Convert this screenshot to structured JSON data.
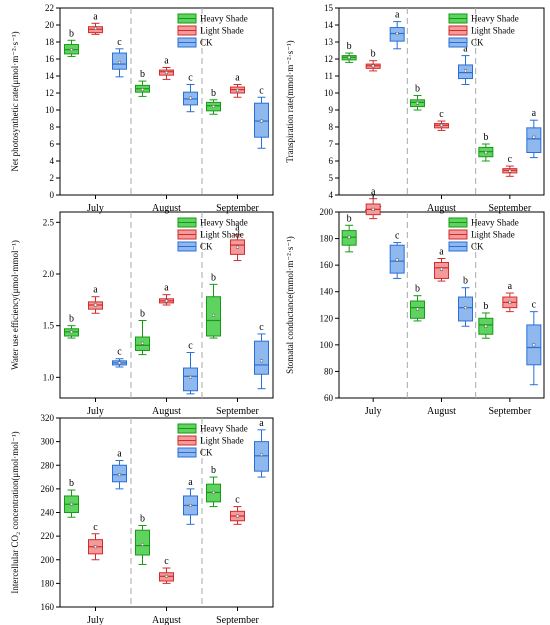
{
  "groups": [
    "July",
    "August",
    "September"
  ],
  "series": [
    {
      "name": "Heavy Shade",
      "fill": "#5fd35f",
      "stroke": "#169a16"
    },
    {
      "name": "Light Shade",
      "fill": "#f59a9a",
      "stroke": "#d22b2b"
    },
    {
      "name": "CK",
      "fill": "#8fb8ef",
      "stroke": "#2a6fd8"
    }
  ],
  "chart_data": [
    {
      "type": "box",
      "ylabel": "Net photosynthetic rate(μmol·m⁻²·s⁻¹)",
      "ylim": [
        0,
        22
      ],
      "yticks": [
        0,
        2,
        4,
        6,
        8,
        10,
        12,
        14,
        16,
        18,
        20,
        22
      ],
      "legend": "top-right",
      "boxes": [
        [
          {
            "min": 16.3,
            "q1": 16.6,
            "median": 17.1,
            "q3": 17.7,
            "max": 18.2,
            "mean": 17.1,
            "label": "b"
          },
          {
            "min": 18.9,
            "q1": 19.1,
            "median": 19.5,
            "q3": 19.8,
            "max": 20.2,
            "mean": 19.6,
            "label": "a"
          },
          {
            "min": 13.9,
            "q1": 14.8,
            "median": 15.4,
            "q3": 16.7,
            "max": 17.2,
            "mean": 15.6,
            "label": "c"
          }
        ],
        [
          {
            "min": 11.6,
            "q1": 12.1,
            "median": 12.5,
            "q3": 12.9,
            "max": 13.4,
            "mean": 12.4,
            "label": "b"
          },
          {
            "min": 13.6,
            "q1": 14.1,
            "median": 14.5,
            "q3": 14.7,
            "max": 15.0,
            "mean": 14.4,
            "label": "a"
          },
          {
            "min": 9.8,
            "q1": 10.6,
            "median": 11.3,
            "q3": 12.1,
            "max": 13.0,
            "mean": 11.4,
            "label": "c"
          }
        ],
        [
          {
            "min": 9.5,
            "q1": 9.9,
            "median": 10.5,
            "q3": 10.9,
            "max": 11.2,
            "mean": 10.4,
            "label": "b"
          },
          {
            "min": 11.5,
            "q1": 12.0,
            "median": 12.4,
            "q3": 12.7,
            "max": 13.0,
            "mean": 12.3,
            "label": "a"
          },
          {
            "min": 5.5,
            "q1": 6.8,
            "median": 8.7,
            "q3": 10.8,
            "max": 11.5,
            "mean": 8.7,
            "label": "c"
          }
        ]
      ]
    },
    {
      "type": "box",
      "ylabel": "Transpiration rate(mmol·m⁻²·s⁻¹)",
      "ylim": [
        4,
        15
      ],
      "yticks": [
        4,
        5,
        6,
        7,
        8,
        9,
        10,
        11,
        12,
        13,
        14,
        15
      ],
      "legend": "top-right",
      "boxes": [
        [
          {
            "min": 11.8,
            "q1": 11.95,
            "median": 12.1,
            "q3": 12.2,
            "max": 12.35,
            "mean": 12.1,
            "label": "b"
          },
          {
            "min": 11.3,
            "q1": 11.45,
            "median": 11.6,
            "q3": 11.7,
            "max": 11.9,
            "mean": 11.6,
            "label": "b"
          },
          {
            "min": 12.6,
            "q1": 13.05,
            "median": 13.5,
            "q3": 13.85,
            "max": 14.2,
            "mean": 13.5,
            "label": "a"
          }
        ],
        [
          {
            "min": 9.0,
            "q1": 9.2,
            "median": 9.45,
            "q3": 9.6,
            "max": 9.85,
            "mean": 9.4,
            "label": "b"
          },
          {
            "min": 7.8,
            "q1": 7.95,
            "median": 8.1,
            "q3": 8.2,
            "max": 8.35,
            "mean": 8.1,
            "label": "c"
          },
          {
            "min": 10.5,
            "q1": 10.85,
            "median": 11.2,
            "q3": 11.65,
            "max": 12.2,
            "mean": 11.3,
            "label": "a"
          }
        ],
        [
          {
            "min": 6.0,
            "q1": 6.25,
            "median": 6.55,
            "q3": 6.8,
            "max": 7.0,
            "mean": 6.5,
            "label": "b"
          },
          {
            "min": 5.1,
            "q1": 5.3,
            "median": 5.45,
            "q3": 5.55,
            "max": 5.7,
            "mean": 5.4,
            "label": "c"
          },
          {
            "min": 6.2,
            "q1": 6.5,
            "median": 7.3,
            "q3": 7.95,
            "max": 8.4,
            "mean": 7.4,
            "label": "a"
          }
        ]
      ]
    },
    {
      "type": "box",
      "ylabel": "Water use efficiency(μmol·mmol⁻¹)",
      "ylim": [
        0.8,
        2.6
      ],
      "yticks": [
        1.0,
        1.5,
        2.0,
        2.5
      ],
      "legend": "top-right",
      "boxes": [
        [
          {
            "min": 1.38,
            "q1": 1.4,
            "median": 1.44,
            "q3": 1.47,
            "max": 1.5,
            "mean": 1.44,
            "label": "b"
          },
          {
            "min": 1.62,
            "q1": 1.66,
            "median": 1.7,
            "q3": 1.73,
            "max": 1.78,
            "mean": 1.7,
            "label": "a"
          },
          {
            "min": 1.1,
            "q1": 1.12,
            "median": 1.14,
            "q3": 1.16,
            "max": 1.18,
            "mean": 1.14,
            "label": "c"
          }
        ],
        [
          {
            "min": 1.22,
            "q1": 1.26,
            "median": 1.31,
            "q3": 1.39,
            "max": 1.55,
            "mean": 1.33,
            "label": "b"
          },
          {
            "min": 1.7,
            "q1": 1.72,
            "median": 1.74,
            "q3": 1.76,
            "max": 1.8,
            "mean": 1.74,
            "label": "a"
          },
          {
            "min": 0.84,
            "q1": 0.87,
            "median": 1.01,
            "q3": 1.09,
            "max": 1.24,
            "mean": 1.0,
            "label": "c"
          }
        ],
        [
          {
            "min": 1.38,
            "q1": 1.4,
            "median": 1.55,
            "q3": 1.78,
            "max": 1.9,
            "mean": 1.6,
            "label": "b"
          },
          {
            "min": 2.13,
            "q1": 2.19,
            "median": 2.28,
            "q3": 2.33,
            "max": 2.38,
            "mean": 2.26,
            "label": "a"
          },
          {
            "min": 0.89,
            "q1": 1.03,
            "median": 1.12,
            "q3": 1.35,
            "max": 1.42,
            "mean": 1.16,
            "label": "c"
          }
        ]
      ]
    },
    {
      "type": "box",
      "ylabel": "Stomatal conductance(mmol·m⁻²·s⁻¹)",
      "ylim": [
        60,
        200
      ],
      "yticks": [
        60,
        80,
        100,
        120,
        140,
        160,
        180,
        200
      ],
      "legend": "top-right",
      "boxes": [
        [
          {
            "min": 170,
            "q1": 175,
            "median": 181,
            "q3": 186,
            "max": 190,
            "mean": 181,
            "label": "b"
          },
          {
            "min": 195,
            "q1": 198,
            "median": 202,
            "q3": 206,
            "max": 210,
            "mean": 202,
            "label": "a"
          },
          {
            "min": 150,
            "q1": 154,
            "median": 163,
            "q3": 175,
            "max": 177,
            "mean": 164,
            "label": "c"
          }
        ],
        [
          {
            "min": 118,
            "q1": 120,
            "median": 128,
            "q3": 133,
            "max": 137,
            "mean": 127,
            "label": "b"
          },
          {
            "min": 148,
            "q1": 150,
            "median": 158,
            "q3": 162,
            "max": 165,
            "mean": 157,
            "label": "a"
          },
          {
            "min": 114,
            "q1": 118,
            "median": 128,
            "q3": 136,
            "max": 143,
            "mean": 128,
            "label": "b"
          }
        ],
        [
          {
            "min": 105,
            "q1": 108,
            "median": 115,
            "q3": 120,
            "max": 124,
            "mean": 114,
            "label": "b"
          },
          {
            "min": 125,
            "q1": 128,
            "median": 132,
            "q3": 136,
            "max": 139,
            "mean": 132,
            "label": "a"
          },
          {
            "min": 70,
            "q1": 85,
            "median": 98,
            "q3": 115,
            "max": 125,
            "mean": 100,
            "label": "c"
          }
        ]
      ]
    },
    {
      "type": "box",
      "ylabel": "Intercellular CO₂ concentration(μmol·mol⁻¹)",
      "ylim": [
        160,
        320
      ],
      "yticks": [
        160,
        180,
        200,
        220,
        240,
        260,
        280,
        300,
        320
      ],
      "legend": "top-right",
      "boxes": [
        [
          {
            "min": 236,
            "q1": 240,
            "median": 247,
            "q3": 254,
            "max": 259,
            "mean": 247,
            "label": "b"
          },
          {
            "min": 200,
            "q1": 205,
            "median": 211,
            "q3": 217,
            "max": 222,
            "mean": 211,
            "label": "c"
          },
          {
            "min": 260,
            "q1": 266,
            "median": 272,
            "q3": 280,
            "max": 284,
            "mean": 272,
            "label": "a"
          }
        ],
        [
          {
            "min": 196,
            "q1": 204,
            "median": 212,
            "q3": 225,
            "max": 229,
            "mean": 213,
            "label": "b"
          },
          {
            "min": 180,
            "q1": 182,
            "median": 186,
            "q3": 189,
            "max": 193,
            "mean": 186,
            "label": "c"
          },
          {
            "min": 230,
            "q1": 238,
            "median": 246,
            "q3": 254,
            "max": 260,
            "mean": 246,
            "label": "a"
          }
        ],
        [
          {
            "min": 245,
            "q1": 249,
            "median": 257,
            "q3": 264,
            "max": 270,
            "mean": 257,
            "label": "b"
          },
          {
            "min": 230,
            "q1": 233,
            "median": 237,
            "q3": 241,
            "max": 245,
            "mean": 237,
            "label": "c"
          },
          {
            "min": 270,
            "q1": 275,
            "median": 288,
            "q3": 300,
            "max": 310,
            "mean": 289,
            "label": "a"
          }
        ]
      ]
    }
  ]
}
